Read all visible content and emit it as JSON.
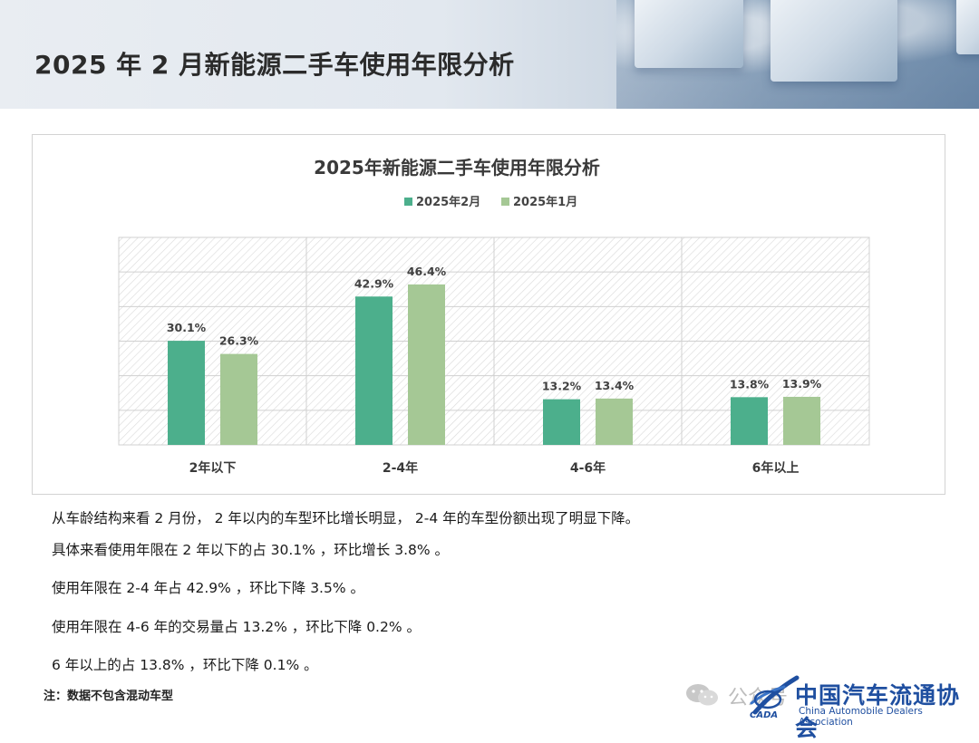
{
  "page": {
    "title": "2025 年 2 月新能源二手车使用年限分析"
  },
  "summary": {
    "lines": [
      "从车龄结构来看 2 月份， 2 年以内的车型环比增长明显， 2-4 年的车型份额出现了明显下降。",
      "具体来看使用年限在 2 年以下的占 30.1% ，环比增长 3.8% 。",
      "使用年限在 2-4 年占 42.9% ，环比下降 3.5% 。",
      "使用年限在 4-6 年的交易量占 13.2% ，环比下降 0.2% 。",
      "6 年以上的占 13.8% ，环比下降 0.1% 。"
    ]
  },
  "note": "注：数据不包含混动车型",
  "footer": {
    "wechat_text": "公众号",
    "org_name_cn": "中国汽车流通协会",
    "org_name_en": "China Automobile Dealers Association",
    "org_abbr": "CADA"
  },
  "chart_data": {
    "type": "bar",
    "title": "2025年新能源二手车使用年限分析",
    "categories": [
      "2年以下",
      "2-4年",
      "4-6年",
      "6年以上"
    ],
    "series": [
      {
        "name": "2025年2月",
        "values": [
          30.1,
          42.9,
          13.2,
          13.8
        ],
        "labels": [
          "30.1%",
          "42.9%",
          "13.2%",
          "13.8%"
        ],
        "color": "#4caf8c"
      },
      {
        "name": "2025年1月",
        "values": [
          26.3,
          46.4,
          13.4,
          13.9
        ],
        "labels": [
          "26.3%",
          "46.4%",
          "13.4%",
          "13.9%"
        ],
        "color": "#a5c895"
      }
    ],
    "ylim": [
      0,
      60
    ],
    "grid": true,
    "legend_position": "top-center",
    "xlabel": "",
    "ylabel": ""
  }
}
